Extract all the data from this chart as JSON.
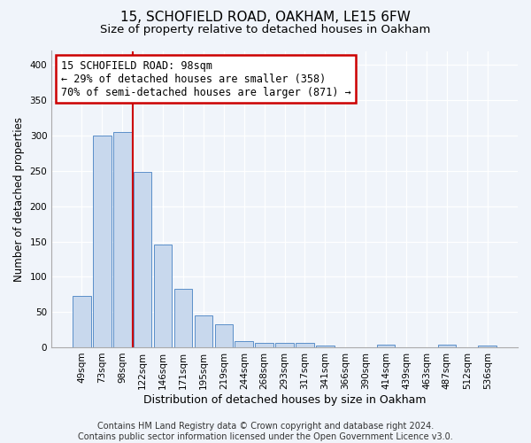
{
  "title": "15, SCHOFIELD ROAD, OAKHAM, LE15 6FW",
  "subtitle": "Size of property relative to detached houses in Oakham",
  "xlabel": "Distribution of detached houses by size in Oakham",
  "ylabel": "Number of detached properties",
  "categories": [
    "49sqm",
    "73sqm",
    "98sqm",
    "122sqm",
    "146sqm",
    "171sqm",
    "195sqm",
    "219sqm",
    "244sqm",
    "268sqm",
    "293sqm",
    "317sqm",
    "341sqm",
    "366sqm",
    "390sqm",
    "414sqm",
    "439sqm",
    "463sqm",
    "487sqm",
    "512sqm",
    "536sqm"
  ],
  "values": [
    73,
    300,
    305,
    248,
    145,
    83,
    45,
    32,
    9,
    6,
    6,
    6,
    2,
    0,
    0,
    4,
    0,
    0,
    4,
    0,
    3
  ],
  "bar_color": "#c8d8ed",
  "bar_edge_color": "#5b8fc9",
  "highlight_index": 2,
  "red_line_x": 2.5,
  "red_line_color": "#cc0000",
  "annotation_text": "15 SCHOFIELD ROAD: 98sqm\n← 29% of detached houses are smaller (358)\n70% of semi-detached houses are larger (871) →",
  "annotation_box_color": "#ffffff",
  "annotation_box_edge_color": "#cc0000",
  "ylim": [
    0,
    420
  ],
  "yticks": [
    0,
    50,
    100,
    150,
    200,
    250,
    300,
    350,
    400
  ],
  "footer": "Contains HM Land Registry data © Crown copyright and database right 2024.\nContains public sector information licensed under the Open Government Licence v3.0.",
  "background_color": "#f0f4fa",
  "plot_background_color": "#f0f4fa",
  "title_fontsize": 11,
  "subtitle_fontsize": 9.5,
  "xlabel_fontsize": 9,
  "ylabel_fontsize": 8.5,
  "tick_fontsize": 7.5,
  "annotation_fontsize": 8.5,
  "footer_fontsize": 7
}
